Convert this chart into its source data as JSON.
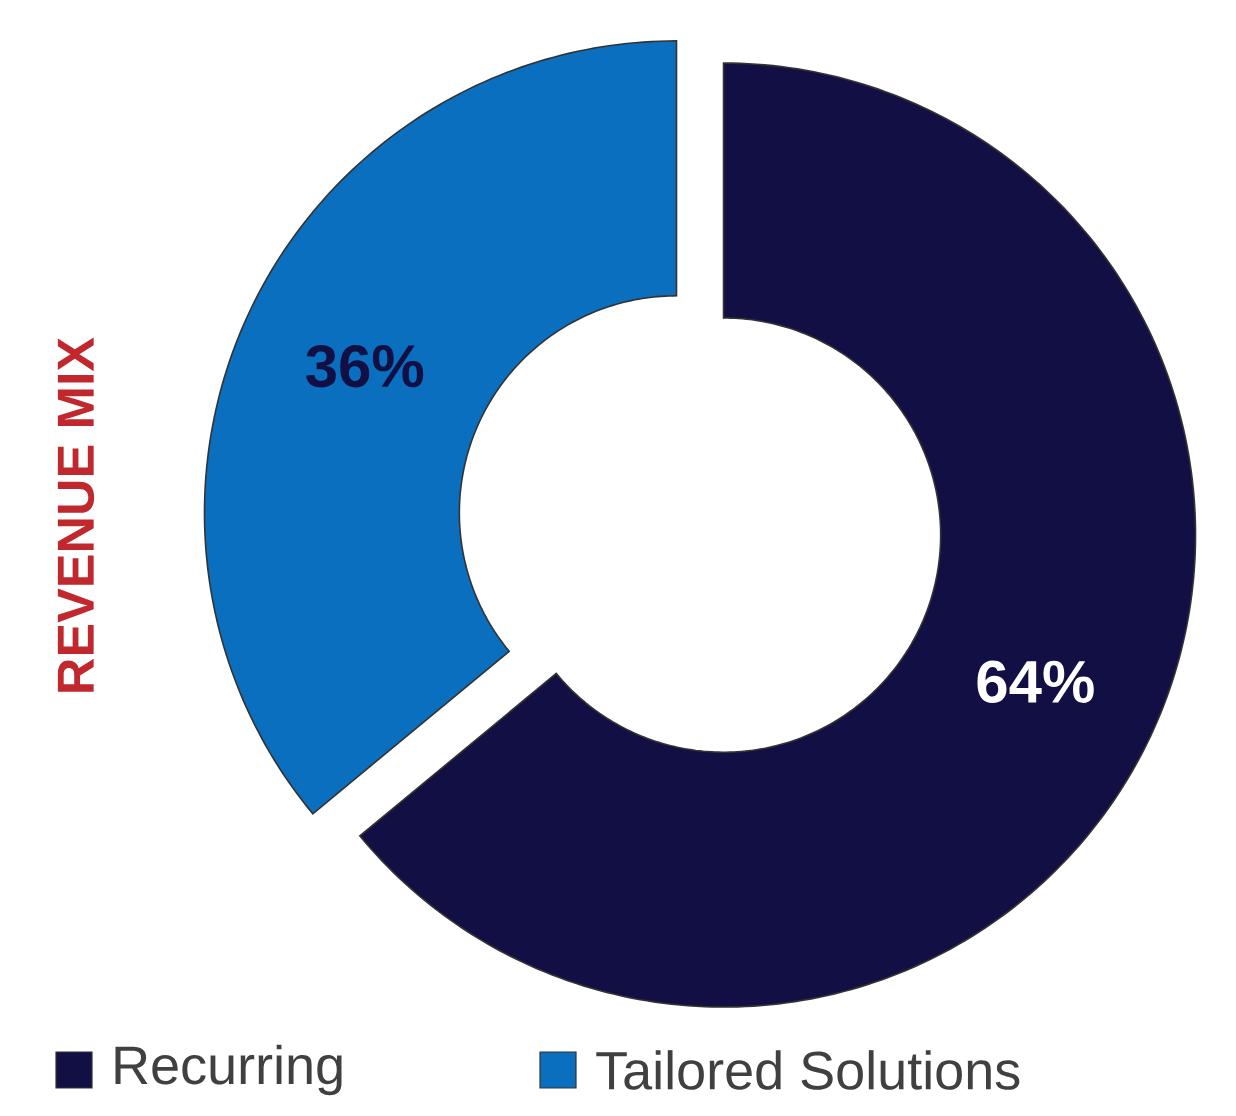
{
  "chart_data": {
    "type": "donut",
    "title": "REVENUE MIX",
    "categories": [
      "Recurring",
      "Tailored Solutions"
    ],
    "values": [
      64,
      36
    ],
    "colors": [
      "#120f45",
      "#0a6fbf"
    ],
    "value_labels": [
      "64%",
      "36%"
    ],
    "legend": "bottom"
  }
}
